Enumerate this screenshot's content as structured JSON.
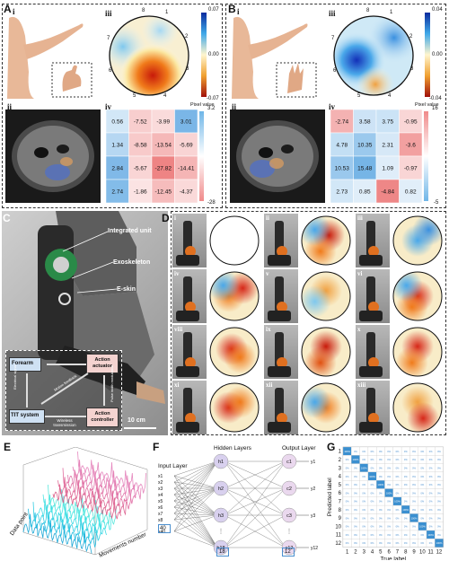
{
  "panels": {
    "A": {
      "label": "A",
      "sub": [
        "i",
        "ii",
        "iii",
        "iv"
      ],
      "electrodes": [
        "8",
        "1",
        "2",
        "3",
        "4",
        "5",
        "6",
        "7"
      ],
      "colorbar_map": [
        "0.07",
        "0.00",
        "-0.07"
      ],
      "colorbar_pix": [
        "3.2",
        "-28"
      ],
      "pixel_label": "Pixel value",
      "matrix": [
        [
          "0.56",
          "-7.52",
          "-3.99",
          "3.01"
        ],
        [
          "1.34",
          "-8.58",
          "-13.54",
          "-5.69"
        ],
        [
          "2.84",
          "-5.67",
          "-27.82",
          "-14.41"
        ],
        [
          "2.74",
          "-1.86",
          "-12.45",
          "-4.37"
        ]
      ]
    },
    "B": {
      "label": "B",
      "sub": [
        "i",
        "ii",
        "iii",
        "iv"
      ],
      "colorbar_map": [
        "0.04",
        "0.00",
        "-0.04"
      ],
      "colorbar_pix": [
        "16",
        "-5"
      ],
      "pixel_label": "Pixel value",
      "matrix": [
        [
          "-2.74",
          "3.58",
          "3.75",
          "-0.95"
        ],
        [
          "4.78",
          "10.35",
          "2.31",
          "-3.6"
        ],
        [
          "10.53",
          "15.48",
          "1.09",
          "-0.97"
        ],
        [
          "2.73",
          "0.85",
          "-4.84",
          "0.82"
        ]
      ]
    },
    "C": {
      "label": "C",
      "integrated_unit": "Integrated unit",
      "exoskeleton": "Exoskeleton",
      "eskin": "E-skin",
      "scale": "10 cm",
      "forearm": "Forearm",
      "actuator": "Action actuator",
      "tit": "TIT system",
      "controller": "Action controller",
      "wireless": "Wireless transmission",
      "arrow_left": "Electrical signal",
      "arrow_mid": "Motion feedback",
      "arrow_right": "Pulse width modulation"
    },
    "D": {
      "label": "D",
      "frames": [
        "i",
        "ii",
        "iii",
        "iv",
        "v",
        "vi",
        "vii",
        "viii",
        "ix",
        "x",
        "xi",
        "xii",
        "xiii"
      ]
    },
    "E": {
      "label": "E",
      "xlabel": "Data point",
      "ylabel": "Movements number"
    },
    "F": {
      "label": "F",
      "input_layer": "Input Layer",
      "hidden_layers": "Hidden Layers",
      "output_layer": "Output Layer",
      "inputs": [
        "x1",
        "x2",
        "x3",
        "x4",
        "x5",
        "x6",
        "x7",
        "x8",
        "x40"
      ],
      "hidden": [
        "h1",
        "h2",
        "h3",
        "h18"
      ],
      "outputs": [
        "c1",
        "c2",
        "c3",
        "c12"
      ],
      "yout": [
        "y1",
        "y2",
        "y3",
        "y12"
      ],
      "n_in": "40",
      "n_hidden": "18",
      "n_out": "12"
    },
    "G": {
      "label": "G",
      "xlabel": "True label",
      "ylabel": "Predicted label",
      "ticks": [
        "1",
        "2",
        "3",
        "4",
        "5",
        "6",
        "7",
        "8",
        "9",
        "10",
        "11",
        "12"
      ],
      "diag_value": "100%",
      "off_value": "0%"
    }
  },
  "chart_data": [
    {
      "type": "heatmap",
      "title": "",
      "rows": [
        [
          "0.56",
          "-7.52",
          "-3.99",
          "3.01"
        ],
        [
          "1.34",
          "-8.58",
          "-13.54",
          "-5.69"
        ],
        [
          "2.84",
          "-5.67",
          "-27.82",
          "-14.41"
        ],
        [
          "2.74",
          "-1.86",
          "-12.45",
          "-4.37"
        ]
      ],
      "range": [
        -28,
        3.2
      ]
    },
    {
      "type": "heatmap",
      "title": "",
      "rows": [
        [
          "-2.74",
          "3.58",
          "3.75",
          "-0.95"
        ],
        [
          "4.78",
          "10.35",
          "2.31",
          "-3.6"
        ],
        [
          "10.53",
          "15.48",
          "1.09",
          "-0.97"
        ],
        [
          "2.73",
          "0.85",
          "-4.84",
          "0.82"
        ]
      ],
      "range": [
        -5,
        16
      ]
    },
    {
      "type": "heatmap",
      "title": "",
      "xlabel": "True label",
      "ylabel": "Predicted label",
      "categories": [
        "1",
        "2",
        "3",
        "4",
        "5",
        "6",
        "7",
        "8",
        "9",
        "10",
        "11",
        "12"
      ],
      "diagonal": 100,
      "off_diagonal": 0
    }
  ],
  "colors": {
    "red": "#d62718",
    "blue": "#1f4fc9",
    "cyan": "#4fb5e8",
    "pink": "#e98da5",
    "grid": "#999999"
  }
}
